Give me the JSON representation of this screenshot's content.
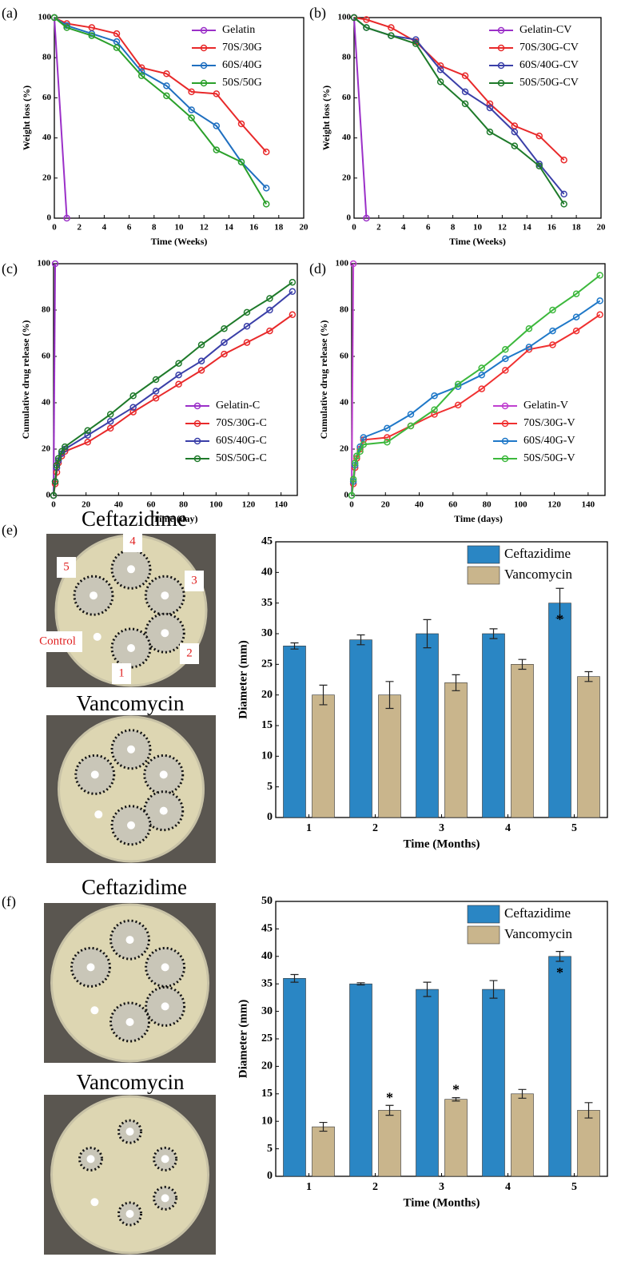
{
  "chart_data": [
    {
      "type": "line",
      "label": "(a)",
      "xlabel": "Time (Weeks)",
      "ylabel": "Weight loss (%)",
      "xlim": [
        0,
        20
      ],
      "ylim": [
        0,
        100
      ],
      "xticks": [
        0,
        2,
        4,
        6,
        8,
        10,
        12,
        14,
        16,
        18,
        20
      ],
      "yticks": [
        0,
        20,
        40,
        60,
        80,
        100
      ],
      "legend": "upper right",
      "series": [
        {
          "name": "Gelatin",
          "color": "#9b30c8",
          "x": [
            0,
            1
          ],
          "values": [
            100,
            0
          ]
        },
        {
          "name": "70S/30G",
          "color": "#e8292a",
          "x": [
            0,
            1,
            3,
            5,
            7,
            9,
            11,
            13,
            15,
            17
          ],
          "values": [
            100,
            97,
            95,
            92,
            75,
            72,
            63,
            62,
            47,
            33
          ]
        },
        {
          "name": "60S/40G",
          "color": "#1f6fc0",
          "x": [
            0,
            1,
            3,
            5,
            7,
            9,
            11,
            13,
            15,
            17
          ],
          "values": [
            100,
            96,
            92,
            88,
            73,
            66,
            54,
            46,
            28,
            15
          ]
        },
        {
          "name": "50S/50G",
          "color": "#2aa02a",
          "x": [
            0,
            1,
            3,
            5,
            7,
            9,
            11,
            13,
            15,
            17
          ],
          "values": [
            100,
            95,
            91,
            85,
            71,
            61,
            50,
            34,
            28,
            7
          ]
        }
      ]
    },
    {
      "type": "line",
      "label": "(b)",
      "xlabel": "Time (Weeks)",
      "ylabel": "Weight loss (%)",
      "xlim": [
        0,
        20
      ],
      "ylim": [
        0,
        100
      ],
      "xticks": [
        0,
        2,
        4,
        6,
        8,
        10,
        12,
        14,
        16,
        18,
        20
      ],
      "yticks": [
        0,
        20,
        40,
        60,
        80,
        100
      ],
      "legend": "upper right",
      "series": [
        {
          "name": "Gelatin-CV",
          "color": "#9b30c8",
          "x": [
            0,
            1
          ],
          "values": [
            100,
            0
          ]
        },
        {
          "name": "70S/30G-CV",
          "color": "#e8292a",
          "x": [
            0,
            1,
            3,
            5,
            7,
            9,
            11,
            13,
            15,
            17
          ],
          "values": [
            100,
            99,
            95,
            88,
            76,
            71,
            57,
            46,
            41,
            29
          ]
        },
        {
          "name": "60S/40G-CV",
          "color": "#3a3fa8",
          "x": [
            0,
            1,
            3,
            5,
            7,
            9,
            11,
            13,
            15,
            17
          ],
          "values": [
            100,
            95,
            91,
            89,
            74,
            63,
            55,
            43,
            27,
            12
          ]
        },
        {
          "name": "50S/50G-CV",
          "color": "#1e7a2a",
          "x": [
            0,
            1,
            3,
            5,
            7,
            9,
            11,
            13,
            15,
            17
          ],
          "values": [
            100,
            95,
            91,
            87,
            68,
            57,
            43,
            36,
            26,
            7
          ]
        }
      ]
    },
    {
      "type": "line",
      "label": "(c)",
      "xlabel": "Time (day)",
      "ylabel": "Cumulative drug release (%)",
      "xlim": [
        0,
        150
      ],
      "ylim": [
        0,
        100
      ],
      "xticks": [
        0,
        20,
        40,
        60,
        80,
        100,
        120,
        140
      ],
      "yticks": [
        0,
        20,
        40,
        60,
        80,
        100
      ],
      "legend": "lower right",
      "series": [
        {
          "name": "Gelatin-C",
          "color": "#9b30c8",
          "x": [
            0,
            1
          ],
          "values": [
            0,
            100
          ]
        },
        {
          "name": "70S/30G-C",
          "color": "#e8292a",
          "x": [
            0,
            1,
            2,
            3,
            5,
            7,
            21,
            35,
            49,
            63,
            77,
            91,
            105,
            119,
            133,
            147
          ],
          "values": [
            0,
            5,
            10,
            14,
            17,
            19,
            23,
            29,
            36,
            42,
            48,
            54,
            61,
            66,
            71,
            78
          ]
        },
        {
          "name": "60S/40G-C",
          "color": "#3a3fa8",
          "x": [
            0,
            1,
            2,
            3,
            5,
            7,
            21,
            35,
            49,
            63,
            77,
            91,
            105,
            119,
            133,
            147
          ],
          "values": [
            0,
            6,
            12,
            15,
            18,
            20,
            26,
            32,
            38,
            45,
            52,
            58,
            66,
            73,
            80,
            88
          ]
        },
        {
          "name": "50S/50G-C",
          "color": "#1e7a2a",
          "x": [
            0,
            1,
            2,
            3,
            5,
            7,
            21,
            35,
            49,
            63,
            77,
            91,
            105,
            119,
            133,
            147
          ],
          "values": [
            0,
            6,
            13,
            16,
            19,
            21,
            28,
            35,
            43,
            50,
            57,
            65,
            72,
            79,
            85,
            92
          ]
        }
      ]
    },
    {
      "type": "line",
      "label": "(d)",
      "xlabel": "Time (days)",
      "ylabel": "Cumulative drug release (%)",
      "xlim": [
        0,
        150
      ],
      "ylim": [
        0,
        100
      ],
      "xticks": [
        0,
        20,
        40,
        60,
        80,
        100,
        120,
        140
      ],
      "yticks": [
        0,
        20,
        40,
        60,
        80,
        100
      ],
      "legend": "lower right",
      "series": [
        {
          "name": "Gelatin-V",
          "color": "#c040d0",
          "x": [
            0,
            1
          ],
          "values": [
            0,
            100
          ]
        },
        {
          "name": "70S/30G-V",
          "color": "#f03030",
          "x": [
            0,
            1,
            2,
            3,
            5,
            7,
            21,
            35,
            49,
            63,
            77,
            91,
            105,
            119,
            133,
            147
          ],
          "values": [
            0,
            5,
            12,
            16,
            20,
            24,
            25,
            30,
            35,
            39,
            46,
            54,
            63,
            65,
            71,
            78
          ]
        },
        {
          "name": "60S/40G-V",
          "color": "#1f78c8",
          "x": [
            0,
            1,
            2,
            3,
            5,
            7,
            21,
            35,
            49,
            63,
            77,
            91,
            105,
            119,
            133,
            147
          ],
          "values": [
            0,
            6,
            13,
            17,
            21,
            25,
            29,
            35,
            43,
            47,
            52,
            59,
            64,
            71,
            77,
            84
          ]
        },
        {
          "name": "50S/50G-V",
          "color": "#3cb83c",
          "x": [
            0,
            1,
            2,
            3,
            5,
            7,
            21,
            35,
            49,
            63,
            77,
            91,
            105,
            119,
            133,
            147
          ],
          "values": [
            0,
            7,
            14,
            17,
            19,
            22,
            23,
            30,
            37,
            48,
            55,
            63,
            72,
            80,
            87,
            95
          ]
        }
      ]
    },
    {
      "type": "bar",
      "label": "(e)",
      "xlabel": "Time (Months)",
      "ylabel": "Diameter (mm)",
      "ylim": [
        0,
        45
      ],
      "yticks": [
        0,
        5,
        10,
        15,
        20,
        25,
        30,
        35,
        40,
        45
      ],
      "legend": "upper right",
      "categories": [
        "1",
        "2",
        "3",
        "4",
        "5"
      ],
      "series": [
        {
          "name": "Ceftazidime",
          "color": "#2a86c4",
          "values": [
            28,
            29,
            30,
            30,
            35
          ],
          "errors": [
            0.5,
            0.8,
            2.3,
            0.8,
            2.4
          ],
          "annotations": [
            null,
            null,
            null,
            null,
            "*"
          ]
        },
        {
          "name": "Vancomycin",
          "color": "#c9b58c",
          "values": [
            20,
            20,
            22,
            25,
            23
          ],
          "errors": [
            1.6,
            2.2,
            1.3,
            0.8,
            0.8
          ],
          "annotations": [
            null,
            null,
            null,
            null,
            null
          ]
        }
      ]
    },
    {
      "type": "bar",
      "label": "(f)",
      "xlabel": "Time (Months)",
      "ylabel": "Diameter (mm)",
      "ylim": [
        0,
        50
      ],
      "yticks": [
        0,
        5,
        10,
        15,
        20,
        25,
        30,
        35,
        40,
        45,
        50
      ],
      "legend": "upper right",
      "categories": [
        "1",
        "2",
        "3",
        "4",
        "5"
      ],
      "series": [
        {
          "name": "Ceftazidime",
          "color": "#2a86c4",
          "values": [
            36,
            35,
            34,
            34,
            40
          ],
          "errors": [
            0.7,
            0.2,
            1.3,
            1.6,
            0.9
          ],
          "annotations": [
            null,
            null,
            null,
            null,
            "*"
          ]
        },
        {
          "name": "Vancomycin",
          "color": "#c9b58c",
          "values": [
            9,
            12,
            14,
            15,
            12
          ],
          "errors": [
            0.8,
            0.9,
            0.3,
            0.8,
            1.4
          ],
          "annotations": [
            null,
            "*",
            "*",
            null,
            null
          ]
        }
      ]
    }
  ],
  "photos": [
    {
      "title": "Ceftazidime",
      "plate_labels": [
        "4",
        "5",
        "3",
        "Control",
        "2",
        "1"
      ]
    },
    {
      "title": "Vancomycin"
    },
    {
      "title": "Ceftazidime"
    },
    {
      "title": "Vancomycin"
    }
  ]
}
